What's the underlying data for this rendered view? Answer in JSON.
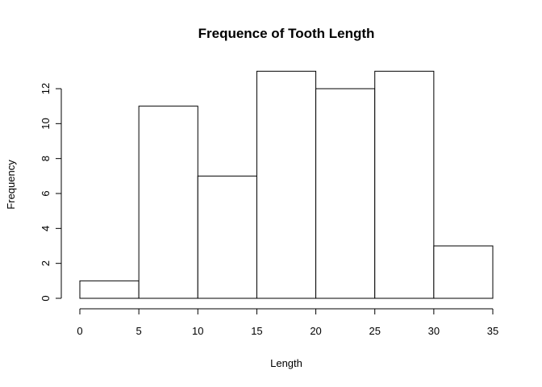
{
  "chart_data": {
    "type": "bar",
    "title": "Frequence of Tooth Length",
    "xlabel": "Length",
    "ylabel": "Frequency",
    "bins": [
      {
        "start": 0,
        "end": 5,
        "count": 1
      },
      {
        "start": 5,
        "end": 10,
        "count": 11
      },
      {
        "start": 10,
        "end": 15,
        "count": 7
      },
      {
        "start": 15,
        "end": 20,
        "count": 13
      },
      {
        "start": 20,
        "end": 25,
        "count": 12
      },
      {
        "start": 25,
        "end": 30,
        "count": 13
      },
      {
        "start": 30,
        "end": 35,
        "count": 3
      }
    ],
    "xlim": [
      0,
      35
    ],
    "ylim": [
      0,
      13
    ],
    "x_ticks": [
      0,
      5,
      10,
      15,
      20,
      25,
      30,
      35
    ],
    "y_ticks": [
      0,
      2,
      4,
      6,
      8,
      10,
      12
    ],
    "grid": false,
    "colors": {
      "bar_fill": "#ffffff",
      "bar_stroke": "#000000"
    }
  }
}
